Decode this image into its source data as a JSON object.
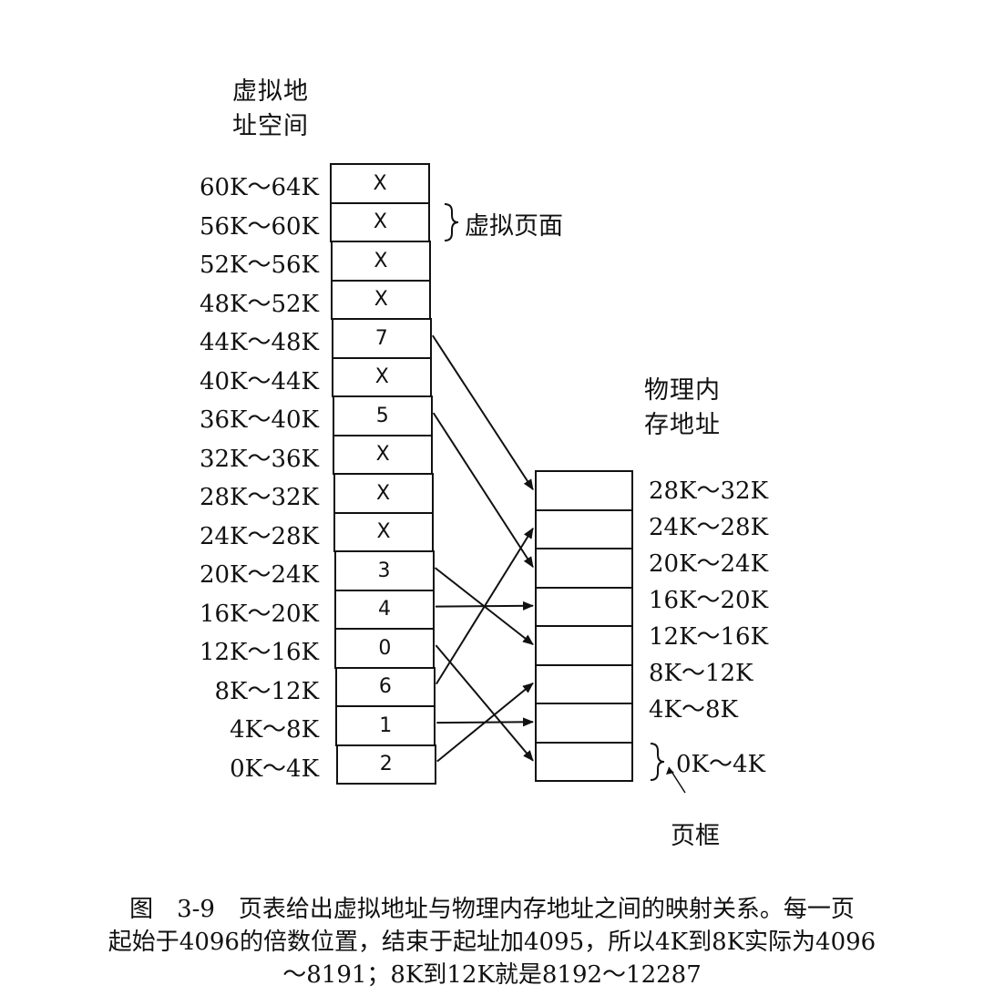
{
  "virtual_heading": [
    "虚拟地",
    "址空间"
  ],
  "physical_heading": [
    "物理内",
    "存地址"
  ],
  "virtual_page_note": "虚拟页面",
  "page_frame_note": "页框",
  "virtual_pages": [
    {
      "range": "60K～64K",
      "frame": "X"
    },
    {
      "range": "56K～60K",
      "frame": "X"
    },
    {
      "range": "52K～56K",
      "frame": "X"
    },
    {
      "range": "48K～52K",
      "frame": "X"
    },
    {
      "range": "44K～48K",
      "frame": "7"
    },
    {
      "range": "40K～44K",
      "frame": "X"
    },
    {
      "range": "36K～40K",
      "frame": "5"
    },
    {
      "range": "32K～36K",
      "frame": "X"
    },
    {
      "range": "28K～32K",
      "frame": "X"
    },
    {
      "range": "24K～28K",
      "frame": "X"
    },
    {
      "range": "20K～24K",
      "frame": "3"
    },
    {
      "range": "16K～20K",
      "frame": "4"
    },
    {
      "range": "12K～16K",
      "frame": "0"
    },
    {
      "range": "8K～12K",
      "frame": "6"
    },
    {
      "range": "4K～8K",
      "frame": "1"
    },
    {
      "range": "0K～4K",
      "frame": "2"
    }
  ],
  "physical_frames": [
    "28K～32K",
    "24K～28K",
    "20K～24K",
    "16K～20K",
    "12K～16K",
    "8K～12K",
    "4K～8K",
    "0K～4K"
  ],
  "caption": [
    "图　3-9　页表给出虚拟地址与物理内存地址之间的映射关系。每一页",
    "起始于4096的倍数位置，结束于起址加4095，所以4K到8K实际为4096",
    "～8191；8K到12K就是8192～12287"
  ]
}
